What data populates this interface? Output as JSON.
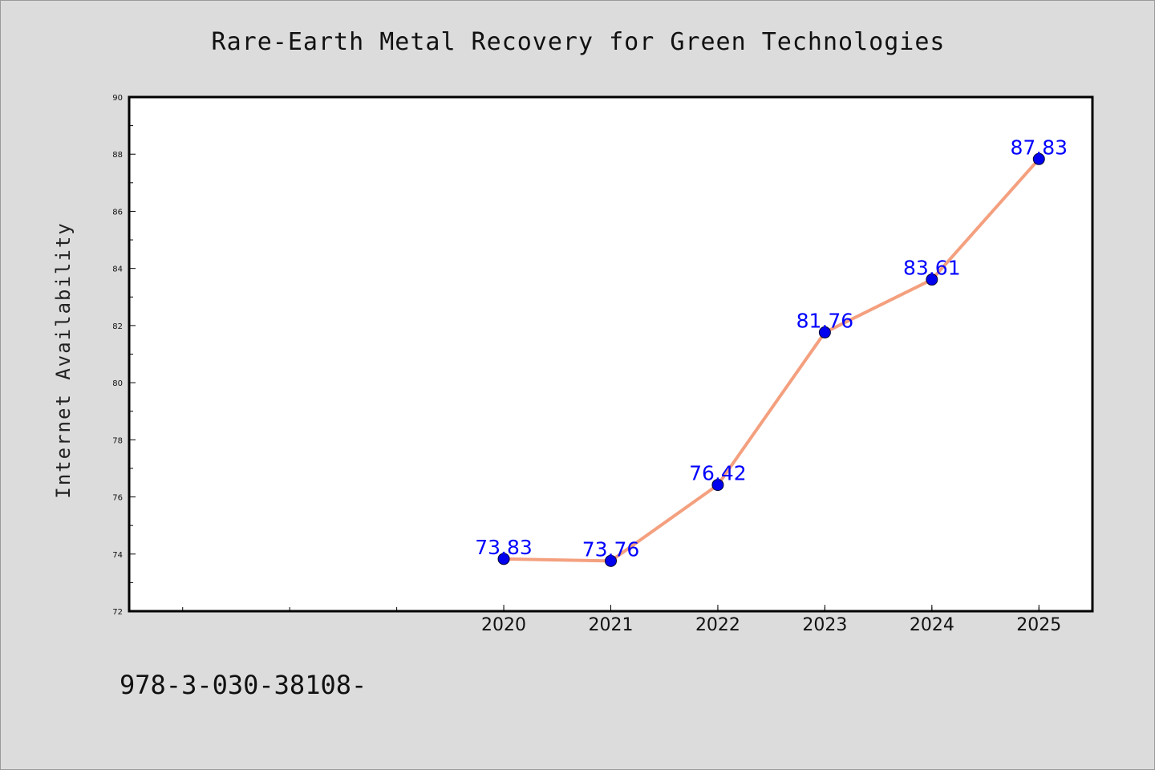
{
  "chart_data": {
    "type": "line",
    "title": "Rare-Earth Metal Recovery for Green Technologies",
    "xlabel": "",
    "ylabel": "Internet Availability",
    "x": [
      2020,
      2021,
      2022,
      2023,
      2024,
      2025
    ],
    "x_tick_labels": [
      "2020",
      "2021",
      "2022",
      "2023",
      "2024",
      "2025"
    ],
    "x_range": [
      2016.5,
      2025.5
    ],
    "series": [
      {
        "values": [
          73.83,
          73.76,
          76.42,
          81.76,
          83.61,
          87.83
        ],
        "data_labels": [
          "73.83",
          "73.76",
          "76.42",
          "81.76",
          "83.61",
          "87.83"
        ]
      }
    ],
    "ylim": [
      72,
      90
    ],
    "y_ticks": [
      72,
      74,
      76,
      78,
      80,
      82,
      84,
      86,
      88,
      90
    ],
    "y_tick_labels": [
      "72",
      "74",
      "76",
      "78",
      "80",
      "82",
      "84",
      "86",
      "88",
      "90"
    ],
    "grid": false,
    "line_color": "#f4a07f",
    "marker_color": "#0000ee",
    "label_color": "#0000ff",
    "background_color": "#dcdcdc",
    "plot_background": "#ffffff"
  },
  "footer": {
    "code": "978-3-030-38108-"
  }
}
